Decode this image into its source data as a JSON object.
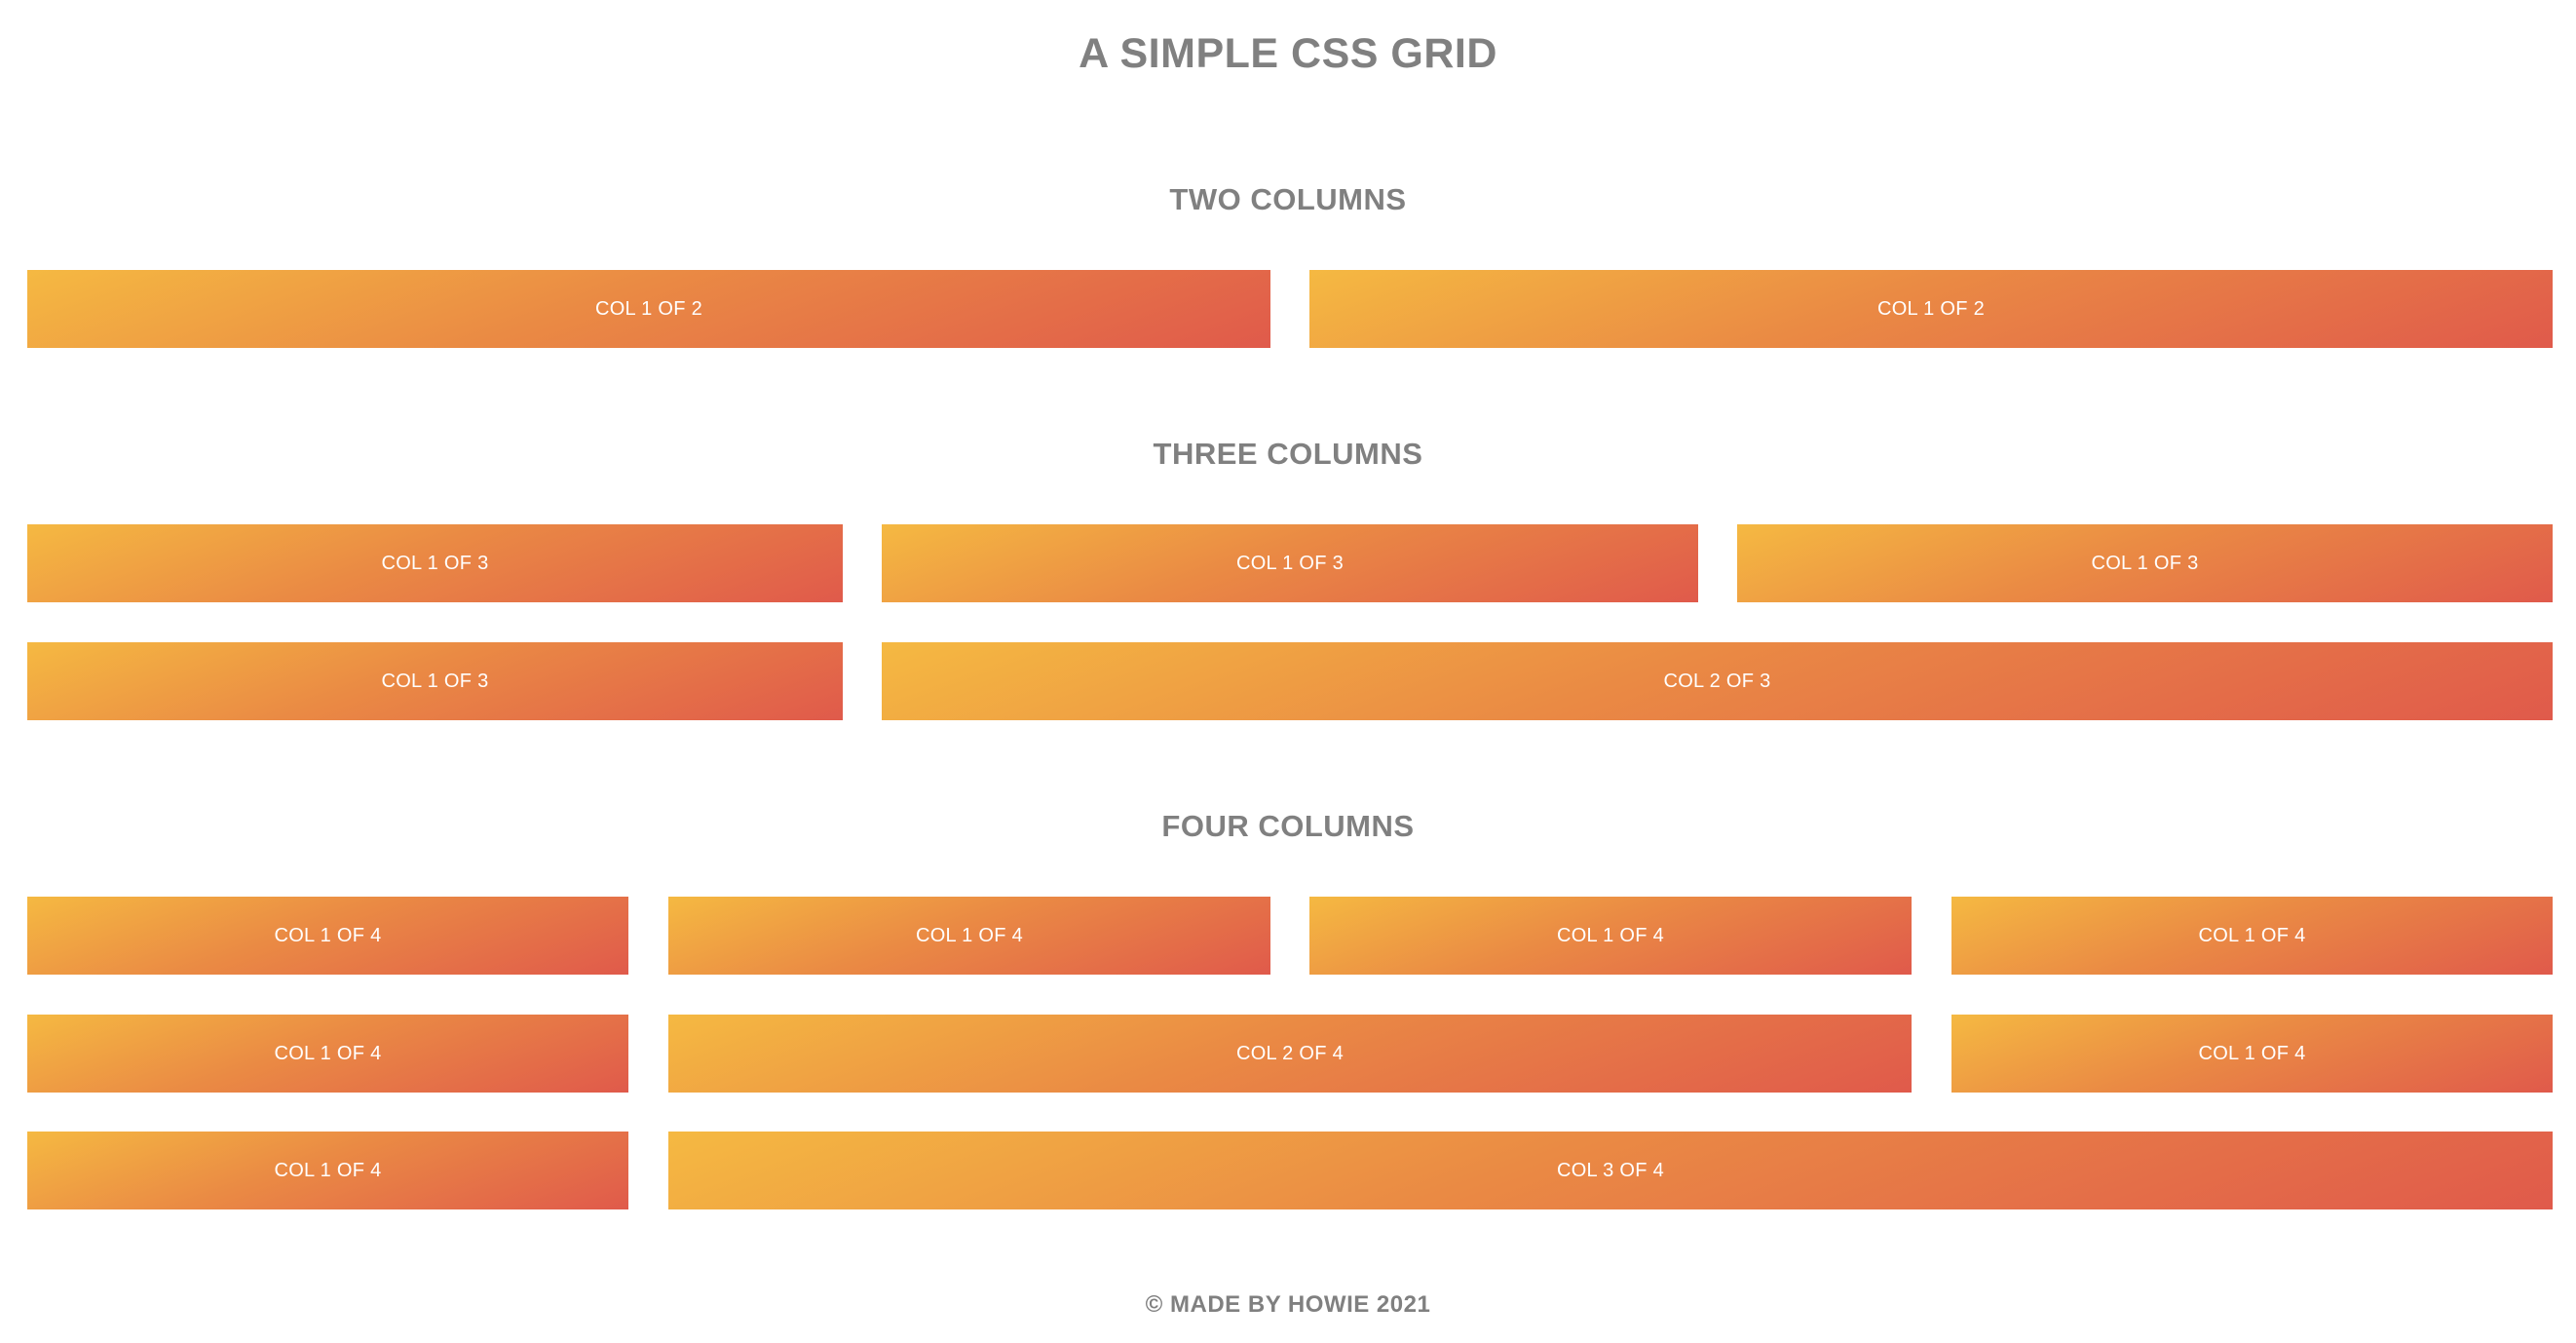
{
  "page": {
    "title": "A SIMPLE CSS GRID",
    "footer": "© MADE BY HOWIE 2021",
    "gradient_start": "#f5b942",
    "gradient_end": "#e05a4b",
    "text_color": "#808080"
  },
  "sections": {
    "two": {
      "heading": "TWO COLUMNS",
      "rows": [
        [
          "COL 1 OF 2",
          "COL 1 OF 2"
        ]
      ]
    },
    "three": {
      "heading": "THREE COLUMNS",
      "rows": [
        [
          "COL 1 OF 3",
          "COL 1 OF 3",
          "COL 1 OF 3"
        ],
        [
          "COL 1 OF 3",
          "COL 2 OF 3"
        ]
      ]
    },
    "four": {
      "heading": "FOUR COLUMNS",
      "rows": [
        [
          "COL 1 OF 4",
          "COL 1 OF 4",
          "COL 1 OF 4",
          "COL 1 OF 4"
        ],
        [
          "COL 1 OF 4",
          "COL 2 OF 4",
          "COL 1 OF 4"
        ],
        [
          "COL 1 OF 4",
          "COL 3 OF 4"
        ]
      ]
    }
  }
}
